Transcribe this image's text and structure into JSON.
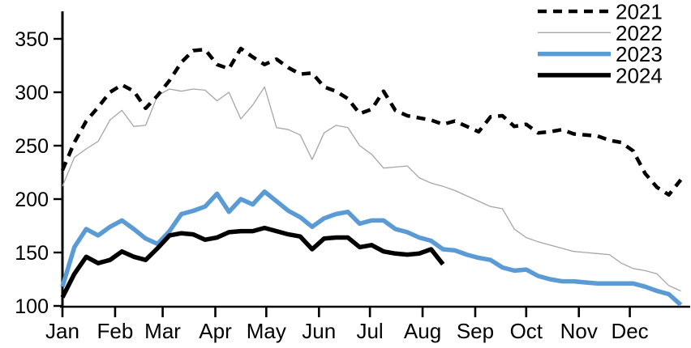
{
  "chart_data": {
    "type": "line",
    "title": "",
    "x_axis": {
      "tick_labels": [
        "Jan",
        "Feb",
        "Mar",
        "Apr",
        "May",
        "Jun",
        "Jul",
        "Aug",
        "Sep",
        "Oct",
        "Nov",
        "Dec"
      ],
      "unit": "weekly observations over one year"
    },
    "y_axis": {
      "min": 100,
      "max": 350,
      "tick_step": 50,
      "tick_values": [
        100,
        150,
        200,
        250,
        300,
        350
      ]
    },
    "legend": {
      "position": "top-right",
      "entries": [
        "2021",
        "2022",
        "2023",
        "2024"
      ]
    },
    "series": [
      {
        "name": "2021",
        "line_style": "dashed",
        "color": "#000000",
        "width": 4.5,
        "values": [
          227,
          253,
          273,
          286,
          300,
          307,
          301,
          285,
          297,
          311,
          328,
          339,
          340,
          326,
          322,
          341,
          333,
          326,
          331,
          323,
          317,
          318,
          305,
          301,
          294,
          280,
          284,
          301,
          283,
          278,
          276,
          274,
          270,
          273,
          268,
          263,
          277,
          278,
          268,
          270,
          262,
          263,
          265,
          261,
          260,
          259,
          255,
          253,
          245,
          224,
          211,
          204,
          218
        ]
      },
      {
        "name": "2022",
        "line_style": "solid",
        "color": "#a6a6a6",
        "width": 1.3,
        "values": [
          212,
          239,
          247,
          254,
          274,
          283,
          268,
          269,
          297,
          303,
          301,
          303,
          302,
          292,
          300,
          275,
          288,
          305,
          267,
          265,
          260,
          237,
          262,
          269,
          267,
          250,
          242,
          229,
          230,
          231,
          220,
          215,
          212,
          208,
          203,
          198,
          193,
          191,
          172,
          164,
          160,
          157,
          154,
          151,
          150,
          149,
          148,
          140,
          135,
          133,
          130,
          119,
          114
        ]
      },
      {
        "name": "2023",
        "line_style": "solid",
        "color": "#5b9bd5",
        "width": 5.5,
        "values": [
          118,
          155,
          172,
          166,
          174,
          180,
          172,
          163,
          158,
          170,
          186,
          189,
          193,
          205,
          188,
          200,
          195,
          207,
          198,
          189,
          183,
          174,
          182,
          186,
          188,
          177,
          180,
          180,
          172,
          169,
          164,
          161,
          153,
          152,
          148,
          145,
          143,
          136,
          133,
          134,
          128,
          125,
          123,
          123,
          122,
          121,
          121,
          121,
          121,
          118,
          114,
          111,
          101
        ]
      },
      {
        "name": "2024",
        "line_style": "solid",
        "color": "#000000",
        "width": 5.5,
        "values": [
          108,
          130,
          146,
          140,
          143,
          151,
          146,
          143,
          154,
          166,
          168,
          167,
          162,
          164,
          169,
          170,
          170,
          173,
          170,
          167,
          165,
          153,
          163,
          164,
          164,
          155,
          157,
          151,
          149,
          148,
          149,
          153,
          139
        ]
      }
    ]
  }
}
